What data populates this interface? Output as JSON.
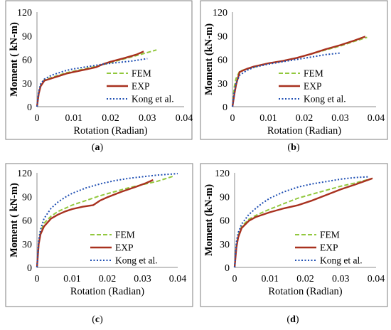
{
  "chart_data": [
    {
      "type": "line",
      "panel_label": "(a)",
      "panel_letter": "a",
      "xlabel": "Rotation (Radian)",
      "ylabel": "Moment ( kN-m)",
      "xlim": [
        0,
        0.04
      ],
      "ylim": [
        0,
        120
      ],
      "xticks": [
        "0",
        "0.01",
        "0.02",
        "0.03",
        "0.04"
      ],
      "yticks": [
        "0",
        "30",
        "60",
        "90",
        "120"
      ],
      "grid": false,
      "legend_position": "bottom-right",
      "series": [
        {
          "name": "FEM",
          "color": "#92c83e",
          "style": "dashed",
          "x": [
            0,
            0.0005,
            0.001,
            0.002,
            0.004,
            0.006,
            0.008,
            0.01,
            0.013,
            0.016,
            0.02,
            0.024,
            0.028,
            0.031,
            0.0325
          ],
          "y": [
            0,
            18,
            27,
            34,
            37,
            40,
            43,
            45,
            48,
            51,
            56,
            61,
            66,
            70,
            72
          ]
        },
        {
          "name": "EXP",
          "color": "#a8311f",
          "style": "solid",
          "x": [
            0,
            0.0005,
            0.001,
            0.002,
            0.004,
            0.006,
            0.008,
            0.01,
            0.013,
            0.016,
            0.018,
            0.02,
            0.024,
            0.027,
            0.029
          ],
          "y": [
            0,
            17,
            26,
            33,
            36,
            39,
            42,
            44,
            47,
            50,
            54,
            57,
            62,
            66,
            70
          ]
        },
        {
          "name": "Kong et al.",
          "color": "#1f4fb3",
          "style": "dotted",
          "x": [
            0,
            0.0005,
            0.001,
            0.002,
            0.004,
            0.006,
            0.008,
            0.01,
            0.014,
            0.018,
            0.022,
            0.026,
            0.03
          ],
          "y": [
            0,
            20,
            29,
            35,
            40,
            43,
            46,
            48,
            51,
            54,
            56,
            58,
            61
          ]
        }
      ]
    },
    {
      "type": "line",
      "panel_label": "(b)",
      "panel_letter": "b",
      "xlabel": "Rotation (Radian)",
      "ylabel": "Moment (kN-m)",
      "xlim": [
        0,
        0.04
      ],
      "ylim": [
        0,
        120
      ],
      "xticks": [
        "0",
        "0.01",
        "0.02",
        "0.03",
        "0.04"
      ],
      "yticks": [
        "0",
        "30",
        "60",
        "90",
        "120"
      ],
      "grid": false,
      "legend_position": "bottom-right",
      "series": [
        {
          "name": "FEM",
          "color": "#92c83e",
          "style": "dashed",
          "x": [
            0,
            0.0005,
            0.001,
            0.002,
            0.004,
            0.006,
            0.008,
            0.01,
            0.014,
            0.018,
            0.022,
            0.026,
            0.03,
            0.034,
            0.0375
          ],
          "y": [
            0,
            25,
            36,
            45,
            48,
            50,
            53,
            55,
            58,
            62,
            67,
            72,
            77,
            83,
            88
          ]
        },
        {
          "name": "EXP",
          "color": "#a8311f",
          "style": "solid",
          "x": [
            0,
            0.0005,
            0.001,
            0.002,
            0.004,
            0.006,
            0.008,
            0.01,
            0.014,
            0.018,
            0.022,
            0.026,
            0.03,
            0.034,
            0.037
          ],
          "y": [
            0,
            15,
            28,
            44,
            48,
            51,
            53,
            55,
            58,
            62,
            67,
            73,
            78,
            84,
            89
          ]
        },
        {
          "name": "Kong et al.",
          "color": "#1f4fb3",
          "style": "dotted",
          "x": [
            0,
            0.0005,
            0.001,
            0.002,
            0.004,
            0.006,
            0.008,
            0.01,
            0.014,
            0.018,
            0.022,
            0.026,
            0.03
          ],
          "y": [
            0,
            18,
            30,
            40,
            46,
            50,
            52,
            54,
            57,
            60,
            63,
            66,
            68
          ]
        }
      ]
    },
    {
      "type": "line",
      "panel_label": "(c)",
      "panel_letter": "c",
      "xlabel": "Rotation (Radian)",
      "ylabel": "Moment ( kN-m)",
      "xlim": [
        0,
        0.04
      ],
      "ylim": [
        0,
        120
      ],
      "xticks": [
        "0",
        "0.01",
        "0.02",
        "0.03",
        "0.04"
      ],
      "yticks": [
        "0",
        "30",
        "60",
        "90",
        "120"
      ],
      "grid": false,
      "legend_position": "bottom-right",
      "series": [
        {
          "name": "FEM",
          "color": "#92c83e",
          "style": "dashed",
          "x": [
            0,
            0.0005,
            0.001,
            0.002,
            0.004,
            0.006,
            0.008,
            0.01,
            0.014,
            0.018,
            0.022,
            0.026,
            0.03,
            0.034,
            0.039
          ],
          "y": [
            0,
            30,
            45,
            56,
            65,
            71,
            75,
            79,
            85,
            91,
            96,
            101,
            105,
            109,
            116
          ]
        },
        {
          "name": "EXP",
          "color": "#a8311f",
          "style": "solid",
          "x": [
            0,
            0.0005,
            0.001,
            0.002,
            0.004,
            0.006,
            0.008,
            0.01,
            0.013,
            0.016,
            0.018,
            0.02,
            0.024,
            0.028,
            0.031,
            0.033
          ],
          "y": [
            0,
            30,
            42,
            52,
            62,
            67,
            71,
            74,
            77,
            79,
            85,
            89,
            96,
            102,
            107,
            111
          ]
        },
        {
          "name": "Kong et al.",
          "color": "#1f4fb3",
          "style": "dotted",
          "x": [
            0,
            0.0005,
            0.001,
            0.002,
            0.004,
            0.006,
            0.008,
            0.01,
            0.014,
            0.018,
            0.022,
            0.026,
            0.03,
            0.034,
            0.04
          ],
          "y": [
            0,
            35,
            48,
            62,
            75,
            83,
            89,
            94,
            101,
            106,
            110,
            113,
            115,
            117,
            119
          ]
        }
      ]
    },
    {
      "type": "line",
      "panel_label": "(d)",
      "panel_letter": "d",
      "xlabel": "Rotation (Radian)",
      "ylabel": "Moment (kN-m)",
      "xlim": [
        0,
        0.04
      ],
      "ylim": [
        0,
        120
      ],
      "xticks": [
        "0",
        "0.01",
        "0.02",
        "0.03",
        "0.04"
      ],
      "yticks": [
        "0",
        "30",
        "60",
        "90",
        "120"
      ],
      "grid": false,
      "legend_position": "bottom-right",
      "series": [
        {
          "name": "FEM",
          "color": "#92c83e",
          "style": "dashed",
          "x": [
            0,
            0.0005,
            0.001,
            0.002,
            0.004,
            0.006,
            0.008,
            0.01,
            0.014,
            0.018,
            0.022,
            0.026,
            0.03,
            0.034,
            0.039
          ],
          "y": [
            0,
            28,
            40,
            52,
            61,
            66,
            70,
            74,
            81,
            88,
            93,
            98,
            103,
            107,
            113
          ]
        },
        {
          "name": "EXP",
          "color": "#a8311f",
          "style": "solid",
          "x": [
            0,
            0.0005,
            0.001,
            0.002,
            0.004,
            0.006,
            0.008,
            0.01,
            0.014,
            0.018,
            0.022,
            0.026,
            0.03,
            0.034,
            0.039
          ],
          "y": [
            0,
            25,
            38,
            50,
            59,
            64,
            67,
            70,
            75,
            79,
            85,
            92,
            99,
            105,
            113
          ]
        },
        {
          "name": "Kong et al.",
          "color": "#1f4fb3",
          "style": "dotted",
          "x": [
            0,
            0.0005,
            0.001,
            0.002,
            0.004,
            0.006,
            0.008,
            0.01,
            0.014,
            0.018,
            0.022,
            0.026,
            0.03,
            0.034,
            0.038
          ],
          "y": [
            0,
            32,
            44,
            55,
            67,
            75,
            82,
            88,
            96,
            102,
            106,
            109,
            112,
            114,
            115
          ]
        }
      ]
    }
  ]
}
